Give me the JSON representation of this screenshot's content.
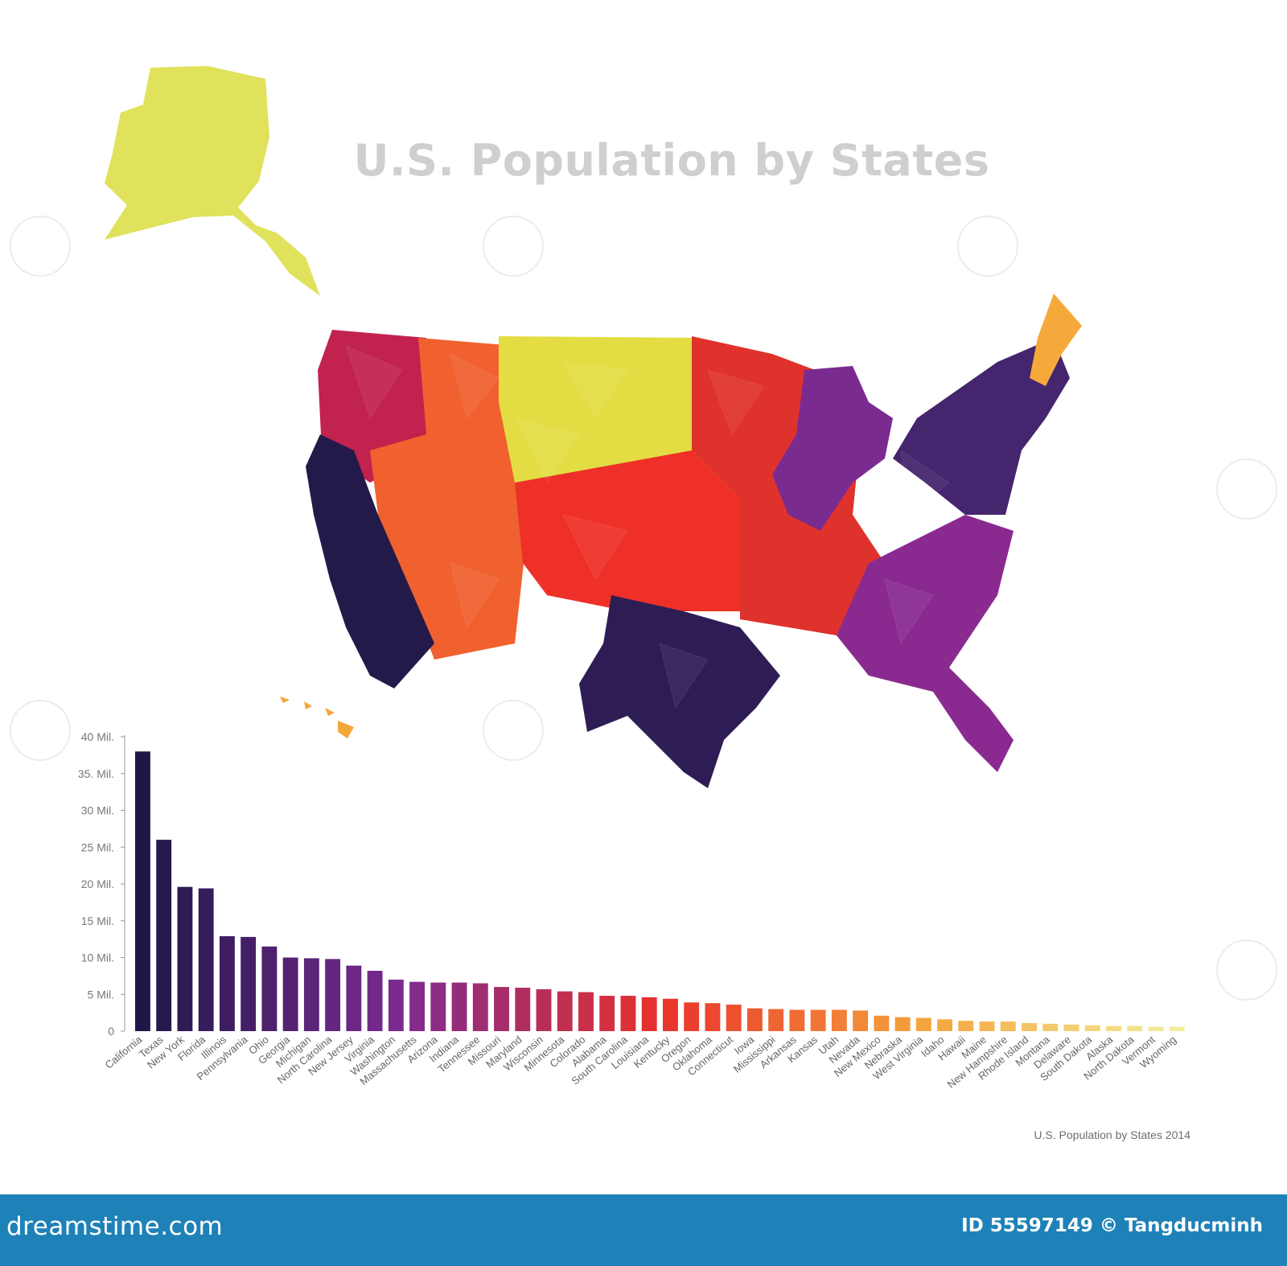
{
  "page": {
    "title": "U.S. Population by States"
  },
  "map": {
    "regions": [
      {
        "name": "Alaska",
        "color": "#dfe25a"
      },
      {
        "name": "Hawaii",
        "color": "#f4a63a"
      },
      {
        "name": "West",
        "color": "#c2224e"
      },
      {
        "name": "California",
        "color": "#231a4a"
      },
      {
        "name": "Mountain",
        "color": "#f0612f"
      },
      {
        "name": "Plains North",
        "color": "#e3dd43"
      },
      {
        "name": "Central",
        "color": "#ee3028"
      },
      {
        "name": "Texas",
        "color": "#2e1d55"
      },
      {
        "name": "Midwest",
        "color": "#e0322c"
      },
      {
        "name": "Great Lakes",
        "color": "#7a2b8f"
      },
      {
        "name": "Southeast",
        "color": "#8a2a90"
      },
      {
        "name": "Northeast",
        "color": "#45256e"
      },
      {
        "name": "Maine",
        "color": "#f6a93b"
      }
    ]
  },
  "chart_data": {
    "type": "bar",
    "title": "",
    "caption": "U.S. Population by States 2014",
    "xlabel": "",
    "ylabel": "",
    "ylim": [
      0,
      40
    ],
    "yticks": [
      "0",
      "5 Mil.",
      "10 Mil.",
      "15 Mil.",
      "20 Mil.",
      "25 Mil.",
      "30 Mil.",
      "35. Mil.",
      "40 Mil."
    ],
    "grid": false,
    "categories": [
      "California",
      "Texas",
      "New York",
      "Florida",
      "Illinois",
      "Pennsylvania",
      "Ohio",
      "Georgia",
      "Michigan",
      "North Carolina",
      "New Jersey",
      "Virginia",
      "Washington",
      "Massachusetts",
      "Arizona",
      "Indiana",
      "Tennessee",
      "Missouri",
      "Maryland",
      "Wisconsin",
      "Minnesota",
      "Colorado",
      "Alabama",
      "South Carolina",
      "Louisiana",
      "Kentucky",
      "Oregon",
      "Oklahoma",
      "Connecticut",
      "Iowa",
      "Mississippi",
      "Arkansas",
      "Kansas",
      "Utah",
      "Nevada",
      "New Mexico",
      "Nebraska",
      "West Virginia",
      "Idaho",
      "Hawaii",
      "Maine",
      "New Hampshire",
      "Rhode Island",
      "Montana",
      "Delaware",
      "South Dakota",
      "Alaska",
      "North Dakota",
      "Vermont",
      "Wyoming"
    ],
    "values": [
      38.0,
      26.0,
      19.6,
      19.4,
      12.9,
      12.8,
      11.5,
      10.0,
      9.9,
      9.8,
      8.9,
      8.2,
      7.0,
      6.7,
      6.6,
      6.6,
      6.5,
      6.0,
      5.9,
      5.7,
      5.4,
      5.3,
      4.8,
      4.8,
      4.6,
      4.4,
      3.9,
      3.8,
      3.6,
      3.1,
      3.0,
      2.9,
      2.9,
      2.9,
      2.8,
      2.1,
      1.9,
      1.8,
      1.6,
      1.4,
      1.3,
      1.3,
      1.1,
      1.0,
      0.9,
      0.8,
      0.7,
      0.7,
      0.6,
      0.6
    ],
    "color_start": "#1f1748",
    "color_mid1": "#7d2b91",
    "color_mid2": "#e8312c",
    "color_mid3": "#f5a23a",
    "color_end": "#f2ee9a"
  },
  "footer": {
    "brand": "dreamstime.com",
    "credit": "ID 55597149 © Tangducminh"
  }
}
